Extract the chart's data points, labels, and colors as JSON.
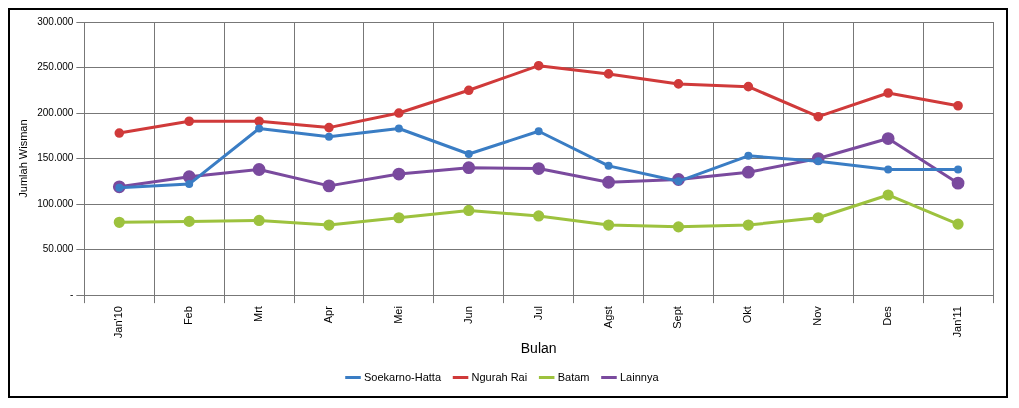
{
  "chart_data": {
    "type": "line",
    "xlabel": "Bulan",
    "ylabel": "Jumlah Wisman",
    "categories": [
      "Jan'10",
      "Feb",
      "Mrt",
      "Apr",
      "Mei",
      "Jun",
      "Jul",
      "Agst",
      "Sept",
      "Okt",
      "Nov",
      "Des",
      "Jan'11"
    ],
    "series": [
      {
        "name": "Soekarno-Hatta",
        "color": "#3a7dc4",
        "values": [
          118000,
          122000,
          183000,
          174000,
          183000,
          155000,
          180000,
          142000,
          125000,
          153000,
          147000,
          138000,
          138000
        ]
      },
      {
        "name": "Ngurah Rai",
        "color": "#d03a3a",
        "values": [
          178000,
          191000,
          191000,
          184000,
          200000,
          225000,
          252000,
          243000,
          232000,
          229000,
          196000,
          222000,
          208000
        ]
      },
      {
        "name": "Batam",
        "color": "#9dc23e",
        "values": [
          80000,
          81000,
          82000,
          77000,
          85000,
          93000,
          87000,
          77000,
          75000,
          77000,
          85000,
          110000,
          78000
        ]
      },
      {
        "name": "Lainnya",
        "color": "#7a4a9e",
        "values": [
          119000,
          130000,
          138000,
          120000,
          133000,
          140000,
          139000,
          124000,
          127000,
          135000,
          150000,
          172000,
          123000
        ]
      }
    ],
    "ylim": [
      0,
      300000
    ],
    "yticks": [
      {
        "value": 0,
        "label": "-"
      },
      {
        "value": 50000,
        "label": "50.000"
      },
      {
        "value": 100000,
        "label": "100.000"
      },
      {
        "value": 150000,
        "label": "150.000"
      },
      {
        "value": 200000,
        "label": "200.000"
      },
      {
        "value": 250000,
        "label": "250.000"
      },
      {
        "value": 300000,
        "label": "300.000"
      }
    ],
    "grid": true,
    "legend": "bottom",
    "marker": "circle",
    "line_style": "solid"
  }
}
